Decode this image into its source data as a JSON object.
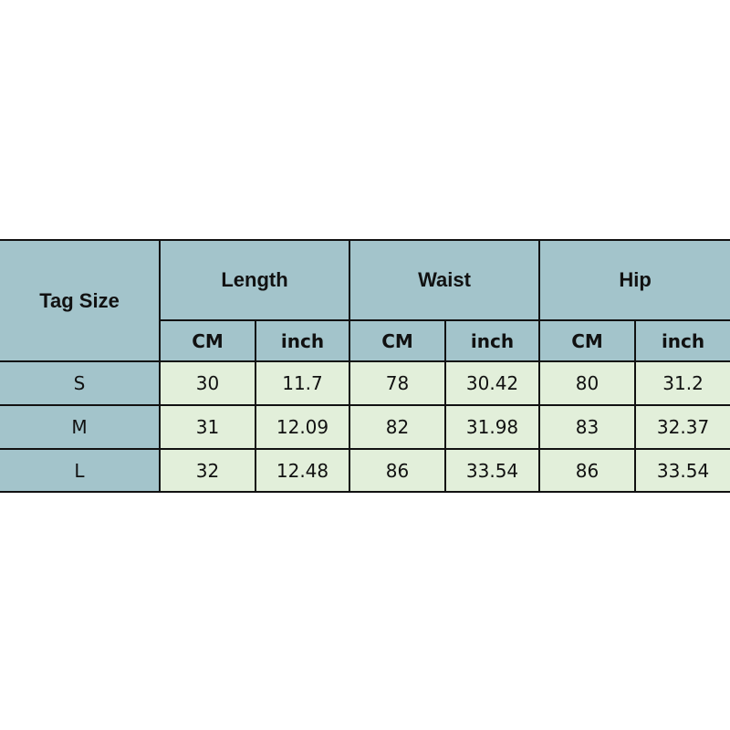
{
  "table": {
    "tag_header": "Tag Size",
    "groups": [
      "Length",
      "Waist",
      "Hip"
    ],
    "units": [
      "CM",
      "inch",
      "CM",
      "inch",
      "CM",
      "inch"
    ],
    "rows": [
      {
        "size": "S",
        "values": [
          "30",
          "11.7",
          "78",
          "30.42",
          "80",
          "31.2"
        ]
      },
      {
        "size": "M",
        "values": [
          "31",
          "12.09",
          "82",
          "31.98",
          "83",
          "32.37"
        ]
      },
      {
        "size": "L",
        "values": [
          "32",
          "12.48",
          "86",
          "33.54",
          "86",
          "33.54"
        ]
      }
    ],
    "colors": {
      "header": "#a3c4cb",
      "cells": "#e2efda"
    }
  }
}
